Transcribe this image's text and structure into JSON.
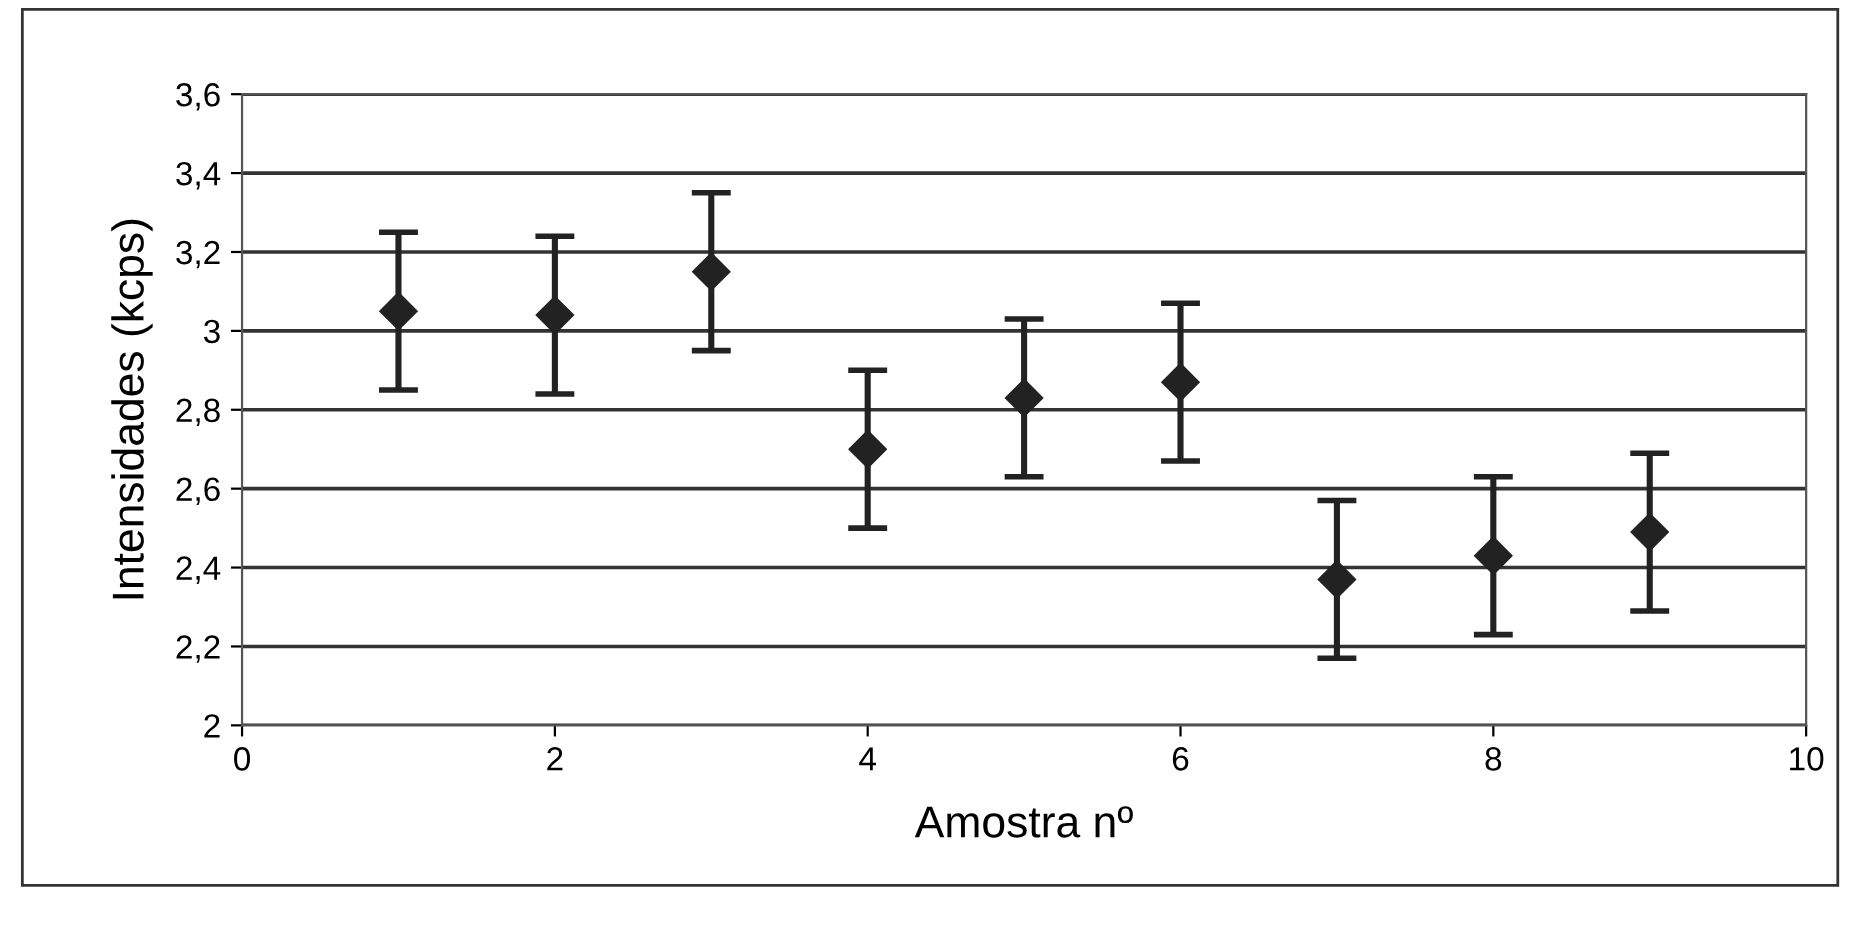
{
  "chart_data": {
    "type": "scatter",
    "xlabel": "Amostra nº",
    "ylabel": "Intensidades (kcps)",
    "x": [
      1,
      2,
      3,
      4,
      5,
      6,
      7,
      8,
      9
    ],
    "values": [
      3.05,
      3.04,
      3.15,
      2.7,
      2.83,
      2.87,
      2.37,
      2.43,
      2.49
    ],
    "errors": [
      0.2,
      0.2,
      0.2,
      0.2,
      0.2,
      0.2,
      0.2,
      0.2,
      0.2
    ],
    "color": "#222222",
    "marker": "diamond",
    "xlim": [
      0,
      10
    ],
    "xticks": [
      0,
      2,
      4,
      6,
      8,
      10
    ],
    "ylim": [
      2,
      3.6
    ],
    "yticks": [
      {
        "value": 2,
        "label": "2"
      },
      {
        "value": 2.2,
        "label": "2,2"
      },
      {
        "value": 2.4,
        "label": "2,4"
      },
      {
        "value": 2.6,
        "label": "2,6"
      },
      {
        "value": 2.8,
        "label": "2,8"
      },
      {
        "value": 3,
        "label": "3"
      },
      {
        "value": 3.2,
        "label": "3,2"
      },
      {
        "value": 3.4,
        "label": "3,4"
      },
      {
        "value": 3.6,
        "label": "3,6"
      }
    ],
    "grid": "y"
  }
}
